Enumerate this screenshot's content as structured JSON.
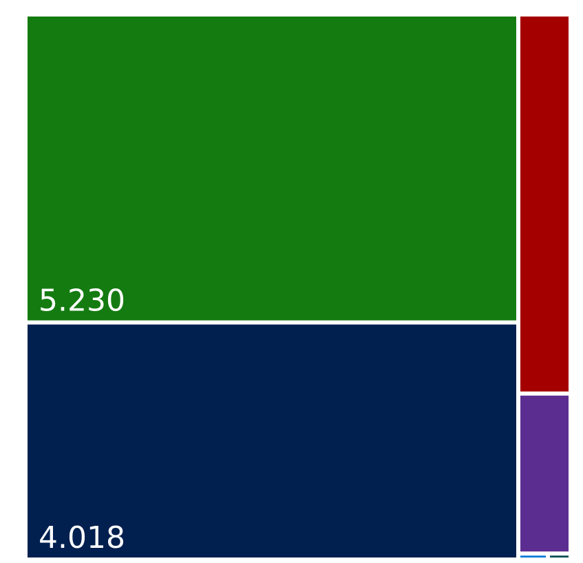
{
  "chart_data": {
    "type": "treemap",
    "nodes": [
      {
        "label": "5.230",
        "value": 5.23,
        "color": "#147b10",
        "show_label": true
      },
      {
        "label": "4.018",
        "value": 4.018,
        "color": "#01204f",
        "show_label": true
      },
      {
        "label": "",
        "value": 0.66,
        "color": "#a50000",
        "show_label": false
      },
      {
        "label": "",
        "value": 0.28,
        "color": "#5c2d91",
        "show_label": false
      },
      {
        "label": "",
        "value": 0.004,
        "color": "#0078d7",
        "show_label": false
      },
      {
        "label": "",
        "value": 0.003,
        "color": "#004b50",
        "show_label": false
      }
    ]
  }
}
